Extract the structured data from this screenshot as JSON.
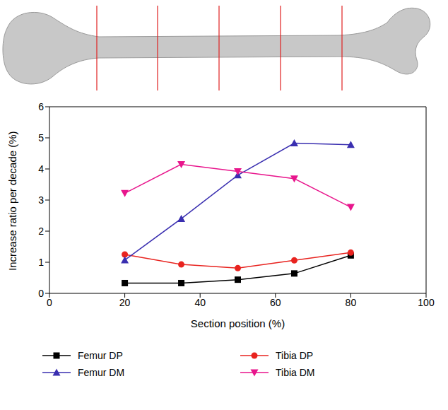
{
  "chart_data": {
    "type": "line",
    "x_label": "Section position (%)",
    "y_label": "Increase ratio per decade (%)",
    "x": [
      20,
      35,
      50,
      65,
      80
    ],
    "xlim": [
      0,
      100
    ],
    "xticks": [
      0,
      20,
      40,
      60,
      80,
      100
    ],
    "ylim": [
      0,
      6
    ],
    "yticks": [
      0,
      1,
      2,
      3,
      4,
      5,
      6
    ],
    "grid": false,
    "legend": "bottom",
    "series": [
      {
        "name": "Femur DP",
        "color": "#000000",
        "marker": "square",
        "values": [
          0.33,
          0.33,
          0.44,
          0.64,
          1.22
        ]
      },
      {
        "name": "Tibia DP",
        "color": "#e8231f",
        "marker": "circle",
        "values": [
          1.25,
          0.93,
          0.81,
          1.06,
          1.31
        ]
      },
      {
        "name": "Femur DM",
        "color": "#3a2fb0",
        "marker": "triangle-up",
        "values": [
          1.07,
          2.4,
          3.8,
          4.83,
          4.78
        ]
      },
      {
        "name": "Tibia DM",
        "color": "#e8158c",
        "marker": "triangle-down",
        "values": [
          3.22,
          4.15,
          3.92,
          3.69,
          2.77
        ]
      }
    ]
  }
}
